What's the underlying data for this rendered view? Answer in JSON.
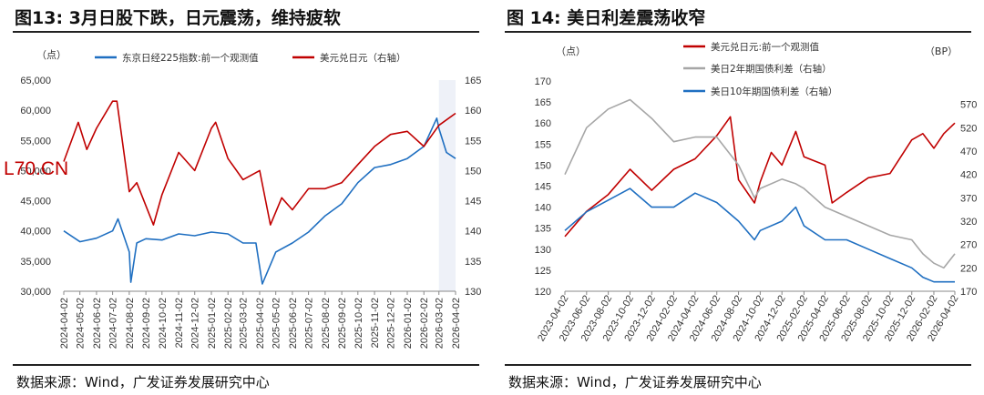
{
  "left": {
    "title": "图13:  3月日股下跌，日元震荡，维持疲软",
    "source": "数据来源：Wind，广发证券发展研究中心",
    "watermark": "L70.CN",
    "chart_data": {
      "type": "line",
      "y_left_unit": "（点）",
      "ylim_left": [
        30000,
        65000
      ],
      "ylim_right": [
        130,
        165
      ],
      "y_left_ticks": [
        "30,000",
        "35,000",
        "40,000",
        "45,000",
        "50,000",
        "55,000",
        "60,000",
        "65,000"
      ],
      "y_right_ticks": [
        "130",
        "135",
        "140",
        "145",
        "150",
        "155",
        "160",
        "165"
      ],
      "x_ticks": [
        "2024-04-02",
        "2024-05-02",
        "2024-06-02",
        "2024-07-02",
        "2024-08-02",
        "2024-09-02",
        "2024-10-02",
        "2024-11-02",
        "2024-12-02",
        "2025-01-02",
        "2025-02-02",
        "2025-03-02",
        "2025-04-02",
        "2025-05-02",
        "2025-06-02",
        "2025-07-02",
        "2025-08-02",
        "2025-09-02",
        "2025-10-02",
        "2025-11-02",
        "2025-12-02",
        "2026-01-02",
        "2026-02-02",
        "2026-03-02",
        "2026-04-02"
      ],
      "shaded_region": [
        "2026-03-02",
        "2026-04-02"
      ],
      "series": [
        {
          "name": "东京日经225指数:前一个观测值",
          "axis": "left",
          "color": "#1f6fc1",
          "x": [
            "2024-04-02",
            "2024-05-02",
            "2024-06-02",
            "2024-07-02",
            "2024-07-12",
            "2024-08-02",
            "2024-08-05",
            "2024-08-16",
            "2024-09-02",
            "2024-10-02",
            "2024-11-02",
            "2024-12-02",
            "2025-01-02",
            "2025-02-02",
            "2025-03-02",
            "2025-03-26",
            "2025-04-07",
            "2025-05-02",
            "2025-06-02",
            "2025-07-02",
            "2025-08-02",
            "2025-09-02",
            "2025-10-02",
            "2025-11-02",
            "2025-12-02",
            "2026-01-02",
            "2026-02-02",
            "2026-02-26",
            "2026-03-02",
            "2026-03-16",
            "2026-04-02"
          ],
          "values": [
            40000,
            38200,
            38800,
            40000,
            42000,
            36500,
            31500,
            38000,
            38700,
            38500,
            39500,
            39200,
            39800,
            39500,
            38000,
            38000,
            31200,
            36500,
            38000,
            39800,
            42500,
            44500,
            48000,
            50500,
            51000,
            52000,
            54000,
            58700,
            57000,
            53000,
            52000
          ]
        },
        {
          "name": "美元兑日元（右轴）",
          "axis": "right",
          "color": "#c00000",
          "x": [
            "2024-04-02",
            "2024-04-29",
            "2024-05-15",
            "2024-06-02",
            "2024-07-02",
            "2024-07-10",
            "2024-08-02",
            "2024-08-16",
            "2024-09-16",
            "2024-10-02",
            "2024-11-02",
            "2024-12-02",
            "2025-01-02",
            "2025-01-10",
            "2025-02-02",
            "2025-03-02",
            "2025-04-02",
            "2025-04-22",
            "2025-05-13",
            "2025-06-02",
            "2025-07-02",
            "2025-08-02",
            "2025-09-02",
            "2025-10-02",
            "2025-11-02",
            "2025-12-02",
            "2026-01-02",
            "2026-02-02",
            "2026-03-02",
            "2026-04-02"
          ],
          "values": [
            151.5,
            158,
            153.5,
            157,
            161.5,
            161.5,
            146.5,
            148,
            141,
            146,
            153,
            150,
            157,
            158,
            152,
            148.5,
            150,
            141,
            145.5,
            143.5,
            147,
            147,
            148,
            151,
            154,
            156,
            156.5,
            154,
            157.5,
            159.5
          ]
        }
      ]
    }
  },
  "right": {
    "title": "图 14:  美日利差震荡收窄",
    "source": "数据来源：Wind，广发证券发展研究中心",
    "chart_data": {
      "type": "line",
      "y_left_unit": "（点）",
      "y_right_unit": "（BP）",
      "ylim_left": [
        120,
        170
      ],
      "ylim_right": [
        170,
        620
      ],
      "y_left_ticks": [
        "120",
        "125",
        "130",
        "135",
        "140",
        "145",
        "150",
        "155",
        "160",
        "165",
        "170"
      ],
      "y_right_ticks": [
        "170",
        "220",
        "270",
        "320",
        "370",
        "420",
        "470",
        "520",
        "570"
      ],
      "x_ticks": [
        "2023-04-02",
        "2023-06-02",
        "2023-08-02",
        "2023-10-02",
        "2023-12-02",
        "2024-02-02",
        "2024-04-02",
        "2024-06-02",
        "2024-08-02",
        "2024-10-02",
        "2024-12-02",
        "2025-02-02",
        "2025-04-02",
        "2025-06-02",
        "2025-08-02",
        "2025-10-02",
        "2025-12-02",
        "2026-02-02",
        "2026-04-02"
      ],
      "series": [
        {
          "name": "美元兑日元:前一个观测值",
          "axis": "left",
          "color": "#c00000",
          "x": [
            "2023-04-02",
            "2023-06-02",
            "2023-08-02",
            "2023-10-02",
            "2023-12-02",
            "2024-02-02",
            "2024-04-02",
            "2024-06-02",
            "2024-07-10",
            "2024-08-02",
            "2024-09-16",
            "2024-10-02",
            "2024-11-02",
            "2024-12-02",
            "2025-01-10",
            "2025-02-02",
            "2025-04-02",
            "2025-04-22",
            "2025-06-02",
            "2025-08-02",
            "2025-10-02",
            "2025-12-02",
            "2026-01-02",
            "2026-02-02",
            "2026-03-02",
            "2026-04-02"
          ],
          "values": [
            133,
            139,
            143,
            149,
            144,
            149,
            151.5,
            157,
            161.5,
            146.5,
            141,
            146,
            153,
            150,
            158,
            152,
            150,
            141,
            143.5,
            147,
            148,
            156,
            157.5,
            154,
            157.5,
            160
          ]
        },
        {
          "name": "美日2年期国债利差（右轴）",
          "axis": "right",
          "color": "#a6a6a6",
          "x": [
            "2023-04-02",
            "2023-06-02",
            "2023-08-02",
            "2023-10-02",
            "2023-12-02",
            "2024-02-02",
            "2024-04-02",
            "2024-06-02",
            "2024-08-02",
            "2024-09-16",
            "2024-10-02",
            "2024-12-02",
            "2025-01-10",
            "2025-02-02",
            "2025-04-02",
            "2025-06-02",
            "2025-08-02",
            "2025-10-02",
            "2025-12-02",
            "2026-01-02",
            "2026-02-02",
            "2026-03-02",
            "2026-04-02"
          ],
          "values": [
            420,
            520,
            560,
            580,
            540,
            490,
            500,
            500,
            440,
            370,
            390,
            410,
            400,
            390,
            350,
            330,
            310,
            290,
            280,
            250,
            230,
            220,
            250
          ]
        },
        {
          "name": "美日10年期国债利差（右轴）",
          "axis": "right",
          "color": "#1f6fc1",
          "x": [
            "2023-04-02",
            "2023-06-02",
            "2023-08-02",
            "2023-10-02",
            "2023-12-02",
            "2024-02-02",
            "2024-04-02",
            "2024-06-02",
            "2024-08-02",
            "2024-09-16",
            "2024-10-02",
            "2024-12-02",
            "2025-01-10",
            "2025-02-02",
            "2025-04-02",
            "2025-06-02",
            "2025-08-02",
            "2025-10-02",
            "2025-12-02",
            "2026-01-02",
            "2026-02-02",
            "2026-03-02",
            "2026-04-02"
          ],
          "values": [
            300,
            340,
            365,
            390,
            350,
            350,
            380,
            360,
            320,
            280,
            300,
            320,
            350,
            310,
            280,
            280,
            260,
            240,
            220,
            200,
            190,
            190,
            190
          ]
        }
      ]
    }
  }
}
